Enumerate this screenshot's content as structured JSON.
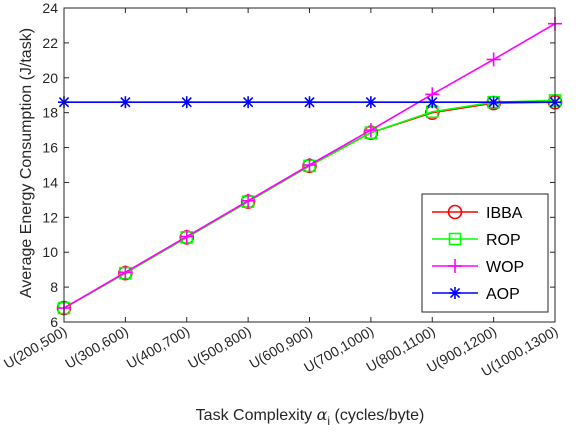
{
  "chart_data": {
    "type": "line",
    "xlabel_main": "Task Complexity ",
    "xlabel_symbol": "α",
    "xlabel_sub": "i",
    "xlabel_unit": " (cycles/byte)",
    "ylabel": "Average Energy Consumption (J/task)",
    "categories": [
      "U(200,500)",
      "U(300,600)",
      "U(400,700)",
      "U(500,800)",
      "U(600,900)",
      "U(700,1000)",
      "U(800,1100)",
      "U(900,1200)",
      "U(1000,1300)"
    ],
    "ylim": [
      6,
      24
    ],
    "yticks": [
      6,
      8,
      10,
      12,
      14,
      16,
      18,
      20,
      22,
      24
    ],
    "grid": false,
    "legend_position": "lower-right",
    "series": [
      {
        "name": "IBBA",
        "color": "#ff0000",
        "marker": "circle",
        "values": [
          6.8,
          8.8,
          10.85,
          12.9,
          14.95,
          16.85,
          18.0,
          18.55,
          18.6
        ]
      },
      {
        "name": "ROP",
        "color": "#00ff00",
        "marker": "square",
        "values": [
          6.8,
          8.8,
          10.85,
          12.9,
          14.95,
          16.85,
          18.05,
          18.6,
          18.7
        ]
      },
      {
        "name": "WOP",
        "color": "#ff00ff",
        "marker": "plus",
        "values": [
          6.8,
          8.85,
          10.9,
          12.95,
          15.0,
          17.0,
          19.05,
          21.05,
          23.1
        ]
      },
      {
        "name": "AOP",
        "color": "#0000ff",
        "marker": "asterisk",
        "values": [
          18.6,
          18.6,
          18.6,
          18.6,
          18.6,
          18.6,
          18.6,
          18.6,
          18.6
        ]
      }
    ]
  }
}
